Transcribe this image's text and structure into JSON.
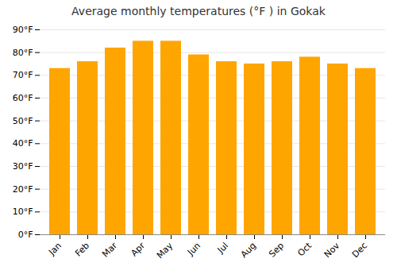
{
  "chart_data": {
    "type": "bar",
    "title": "Average monthly temperatures (°F ) in Gokak",
    "categories": [
      "Jan",
      "Feb",
      "Mar",
      "Apr",
      "May",
      "Jun",
      "Jul",
      "Aug",
      "Sep",
      "Oct",
      "Nov",
      "Dec"
    ],
    "values": [
      73,
      76,
      82,
      85,
      85,
      79,
      76,
      75,
      76,
      78,
      75,
      73
    ],
    "color": "#FFA500",
    "ylim": [
      0,
      90
    ],
    "yticks": [
      {
        "value": 0,
        "label": "0°F"
      },
      {
        "value": 10,
        "label": "10°F"
      },
      {
        "value": 20,
        "label": "20°F"
      },
      {
        "value": 30,
        "label": "30°F"
      },
      {
        "value": 40,
        "label": "40°F"
      },
      {
        "value": 50,
        "label": "50°F"
      },
      {
        "value": 60,
        "label": "60°F"
      },
      {
        "value": 70,
        "label": "70°F"
      },
      {
        "value": 80,
        "label": "80°F"
      },
      {
        "value": 90,
        "label": "90°F"
      }
    ],
    "grid": true
  }
}
